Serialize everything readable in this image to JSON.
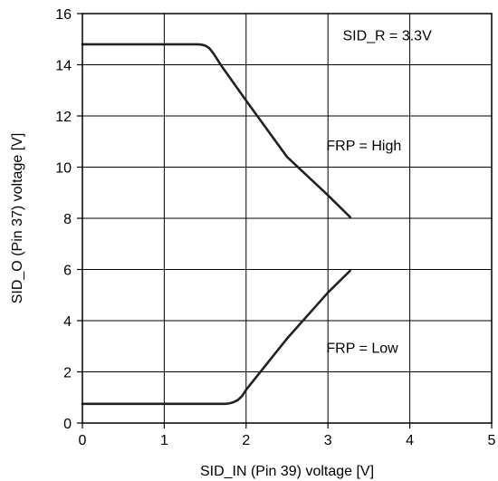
{
  "chart_data": {
    "type": "line",
    "title": "",
    "xlabel": "SID_IN (Pin 39) voltage [V]",
    "ylabel": "SID_O (Pin 37) voltage [V]",
    "xlim": [
      0,
      5
    ],
    "ylim": [
      0,
      16
    ],
    "x_ticks": [
      "0",
      "1",
      "2",
      "3",
      "4",
      "5"
    ],
    "y_ticks": [
      "0",
      "2",
      "4",
      "6",
      "8",
      "10",
      "12",
      "14",
      "16"
    ],
    "grid": true,
    "annotations": {
      "sid_r": "SID_R = 3.3V",
      "frp_high": "FRP = High",
      "frp_low": "FRP = Low"
    },
    "series": [
      {
        "label_key": "frp_high",
        "x": [
          0,
          0.5,
          1.0,
          1.4,
          1.45,
          1.5,
          1.55,
          1.6,
          1.65,
          1.7,
          2.0,
          2.5,
          3.0,
          3.27
        ],
        "y": [
          14.8,
          14.8,
          14.8,
          14.8,
          14.79,
          14.75,
          14.65,
          14.45,
          14.2,
          13.95,
          12.6,
          10.4,
          8.9,
          8.05
        ]
      },
      {
        "label_key": "frp_low",
        "x": [
          0,
          0.5,
          1.0,
          1.5,
          1.75,
          1.8,
          1.85,
          1.9,
          1.95,
          2.0,
          2.5,
          3.0,
          3.27
        ],
        "y": [
          0.75,
          0.75,
          0.75,
          0.75,
          0.75,
          0.77,
          0.82,
          0.9,
          1.05,
          1.3,
          3.3,
          5.1,
          5.95
        ]
      }
    ]
  }
}
